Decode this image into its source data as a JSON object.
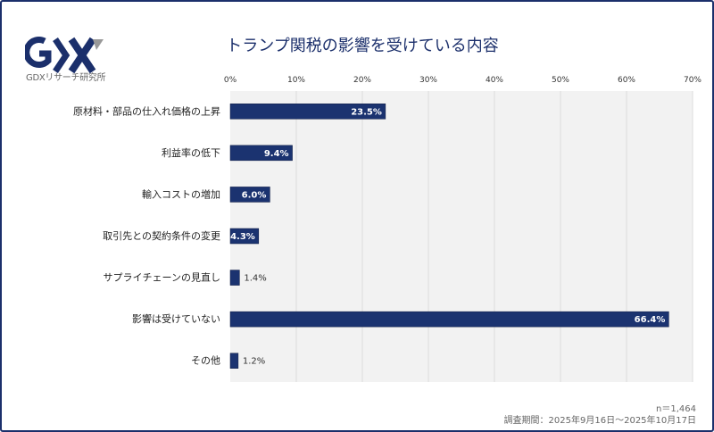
{
  "logo": {
    "text": "GDXリサーチ研究所",
    "brand": "GDX"
  },
  "colors": {
    "bar": "#1b3370",
    "frame": "#1b2f6b",
    "plot_bg": "#f2f2f2"
  },
  "chart_data": {
    "type": "bar",
    "orientation": "horizontal",
    "title": "トランプ関税の影響を受けている内容",
    "categories": [
      "原材料・部品の仕入れ価格の上昇",
      "利益率の低下",
      "輸入コストの増加",
      "取引先との契約条件の変更",
      "サプライチェーンの見直し",
      "影響は受けていない",
      "その他"
    ],
    "values": [
      23.5,
      9.4,
      6.0,
      4.3,
      1.4,
      66.4,
      1.2
    ],
    "labels": [
      "23.5%",
      "9.4%",
      "6.0%",
      "4.3%",
      "1.4%",
      "66.4%",
      "1.2%"
    ],
    "xlim": [
      0,
      70
    ],
    "ticks": [
      "0%",
      "10%",
      "20%",
      "30%",
      "40%",
      "50%",
      "60%",
      "70%"
    ],
    "tick_values": [
      0,
      10,
      20,
      30,
      40,
      50,
      60,
      70
    ],
    "grid": true,
    "axis_position": "top"
  },
  "footer": {
    "n": "n＝1,464",
    "period": "調査期間：2025年9月16日～2025年10月17日"
  }
}
